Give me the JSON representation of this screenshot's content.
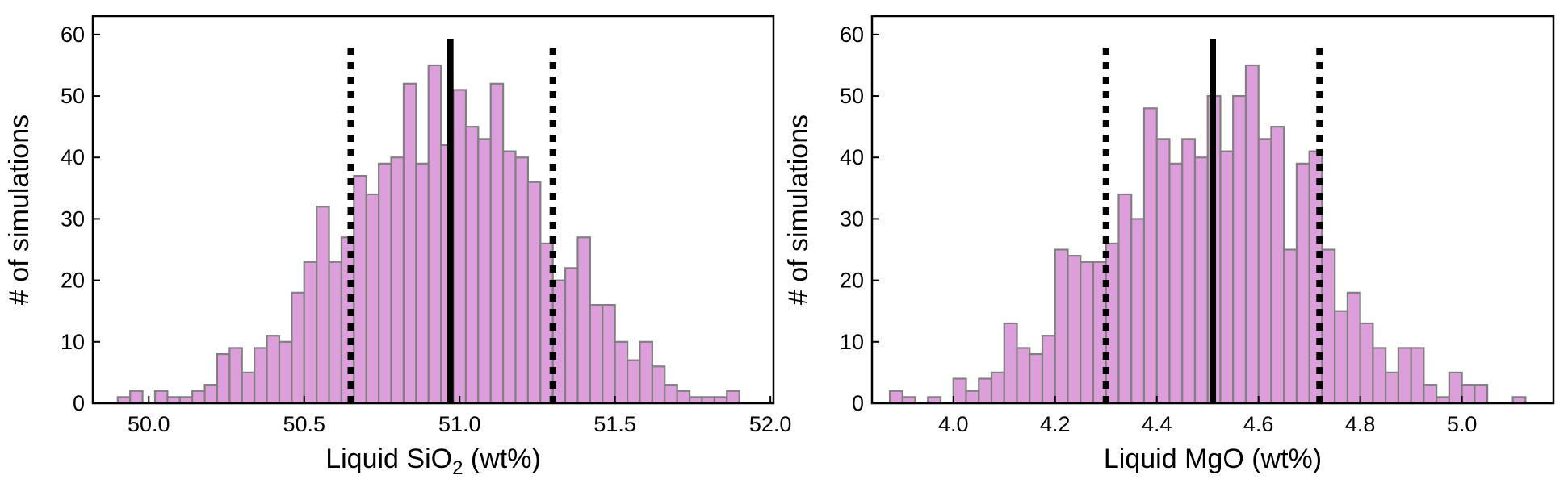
{
  "chart_data": [
    {
      "type": "bar",
      "subtype": "histogram",
      "xlabel": "Liquid SiO",
      "xlabel_sub": "2",
      "xlabel_tail": " (wt%)",
      "ylabel": "# of simulations",
      "xlim": [
        49.82,
        52.01
      ],
      "ylim": [
        0,
        63
      ],
      "xticks": [
        50.0,
        50.5,
        51.0,
        51.5,
        52.0
      ],
      "xtick_labels": [
        "50.0",
        "50.5",
        "51.0",
        "51.5",
        "52.0"
      ],
      "yticks": [
        0,
        10,
        20,
        30,
        40,
        50,
        60
      ],
      "ytick_labels": [
        "0",
        "10",
        "20",
        "30",
        "40",
        "50",
        "60"
      ],
      "bin_start": 49.9,
      "bin_width": 0.04,
      "values": [
        1,
        2,
        0,
        2,
        1,
        1,
        2,
        3,
        8,
        9,
        5,
        9,
        11,
        10,
        18,
        23,
        32,
        23,
        27,
        37,
        34,
        39,
        40,
        52,
        39,
        55,
        42,
        51,
        45,
        43,
        52,
        41,
        40,
        36,
        26,
        20,
        22,
        27,
        16,
        16,
        10,
        7,
        10,
        6,
        3,
        2,
        1,
        1,
        1,
        2
      ],
      "median": 50.97,
      "bounds": [
        50.65,
        51.3
      ],
      "bar_color": "#dc9fdc",
      "edge_color": "#808080"
    },
    {
      "type": "bar",
      "subtype": "histogram",
      "xlabel": "Liquid MgO (wt%)",
      "ylabel": "# of simulations",
      "xlim": [
        3.84,
        5.18
      ],
      "ylim": [
        0,
        63
      ],
      "xticks": [
        4.0,
        4.2,
        4.4,
        4.6,
        4.8,
        5.0
      ],
      "xtick_labels": [
        "4.0",
        "4.2",
        "4.4",
        "4.6",
        "4.8",
        "5.0"
      ],
      "yticks": [
        0,
        10,
        20,
        30,
        40,
        50,
        60
      ],
      "ytick_labels": [
        "0",
        "10",
        "20",
        "30",
        "40",
        "50",
        "60"
      ],
      "bin_start": 3.875,
      "bin_width": 0.025,
      "values": [
        2,
        1,
        0,
        1,
        0,
        4,
        2,
        4,
        5,
        13,
        9,
        8,
        11,
        25,
        24,
        23,
        23,
        26,
        34,
        30,
        48,
        43,
        39,
        43,
        40,
        50,
        41,
        50,
        55,
        43,
        45,
        25,
        39,
        41,
        25,
        15,
        18,
        13,
        9,
        5,
        9,
        9,
        3,
        1,
        5,
        3,
        3,
        0,
        0,
        1
      ],
      "median": 4.51,
      "bounds": [
        4.3,
        4.72
      ],
      "bar_color": "#dc9fdc",
      "edge_color": "#808080"
    }
  ]
}
